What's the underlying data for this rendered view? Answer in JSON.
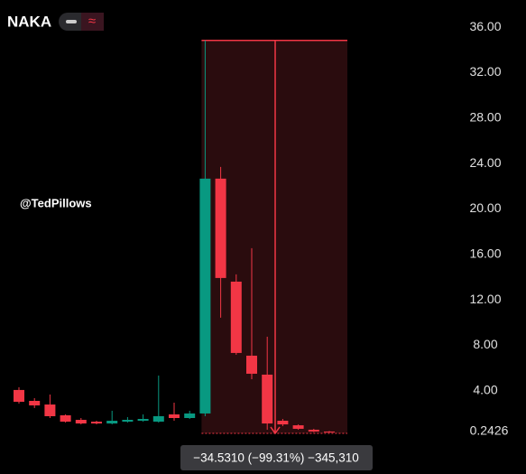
{
  "chart_data": {
    "type": "candlestick",
    "title": "NAKA",
    "annotation": "@TedPillows",
    "measure_label": "−34.5310 (−99.31%) −345,310",
    "up_color": "#089981",
    "down_color": "#f23645",
    "ylim": [
      0,
      38.4
    ],
    "yticks": [
      {
        "value": 36,
        "label": "36.00"
      },
      {
        "value": 32,
        "label": "32.00"
      },
      {
        "value": 28,
        "label": "28.00"
      },
      {
        "value": 24,
        "label": "24.00"
      },
      {
        "value": 20,
        "label": "20.00"
      },
      {
        "value": 16,
        "label": "16.00"
      },
      {
        "value": 12,
        "label": "12.00"
      },
      {
        "value": 8,
        "label": "8.00"
      },
      {
        "value": 4,
        "label": "4.00"
      }
    ],
    "last_price": 0.2426,
    "open": [
      4.06,
      3.1,
      2.78,
      1.83,
      1.43,
      1.27,
      1.11,
      1.27,
      1.35,
      1.27,
      1.91,
      1.59,
      1.99,
      22.67,
      13.6,
      7.08,
      5.41,
      1.35,
      0.95,
      0.56,
      0.4
    ],
    "high": [
      4.3,
      3.34,
      3.66,
      1.91,
      1.59,
      1.35,
      2.23,
      1.67,
      1.91,
      5.33,
      2.94,
      2.23,
      34.84,
      23.7,
      14.24,
      16.55,
      8.75,
      1.51,
      1.03,
      0.64,
      0.45
    ],
    "low": [
      2.86,
      2.47,
      1.59,
      1.19,
      1.03,
      1.03,
      1.03,
      1.19,
      1.27,
      1.19,
      1.35,
      1.51,
      1.75,
      10.42,
      7.16,
      5.01,
      0.56,
      0.88,
      0.56,
      0.35,
      0.3
    ],
    "close": [
      3.02,
      2.7,
      1.75,
      1.27,
      1.11,
      1.11,
      1.35,
      1.43,
      1.51,
      1.75,
      1.59,
      1.99,
      22.67,
      13.92,
      7.32,
      5.49,
      1.11,
      1.03,
      0.64,
      0.4,
      0.32
    ]
  }
}
